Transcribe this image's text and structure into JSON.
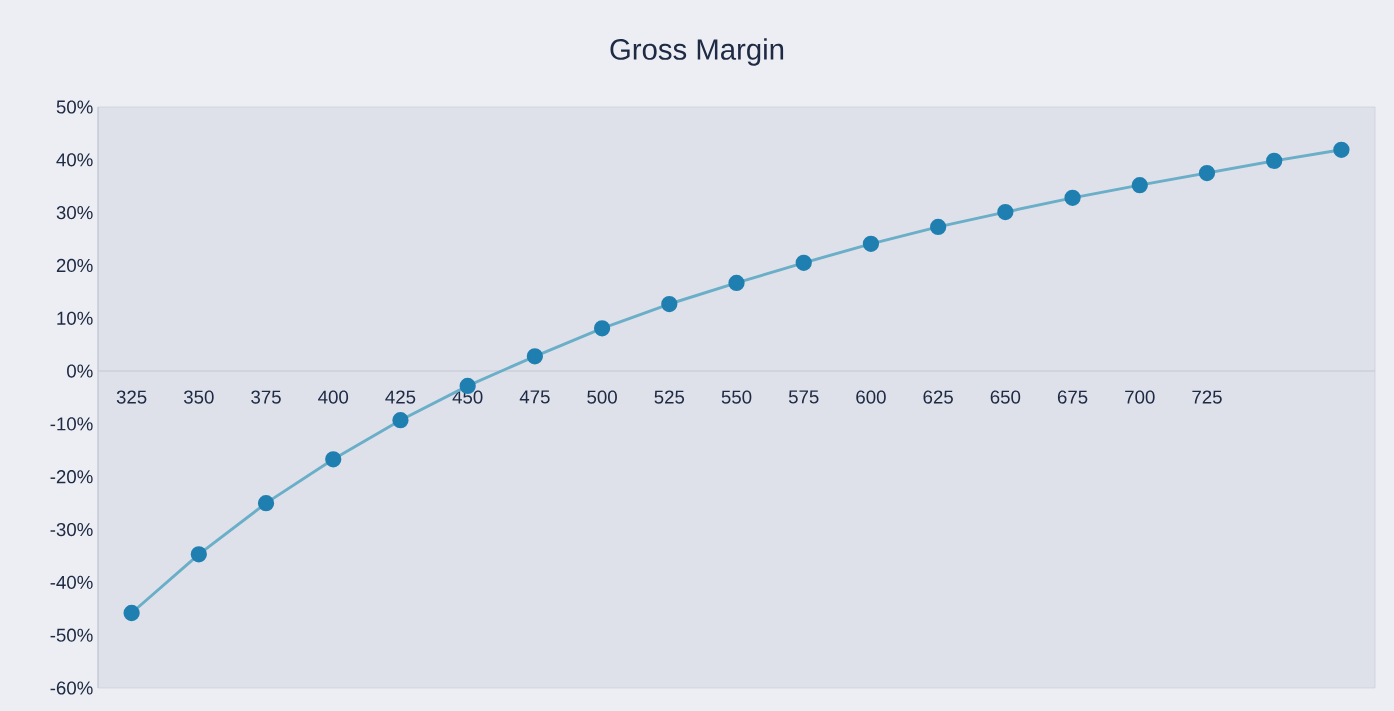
{
  "chart_data": {
    "type": "line",
    "title": "Gross Margin",
    "categories": [
      "325",
      "350",
      "375",
      "400",
      "425",
      "450",
      "475",
      "500",
      "525",
      "550",
      "575",
      "600",
      "625",
      "650",
      "675",
      "700",
      "725",
      null,
      null
    ],
    "series": [
      {
        "color": "#6aaec8",
        "values": [
          -45.8,
          -34.7,
          -25.0,
          -16.7,
          -9.3,
          -2.8,
          2.8,
          8.1,
          12.7,
          16.7,
          20.5,
          24.1,
          27.3,
          30.1,
          32.8,
          35.2,
          37.5,
          39.8,
          41.9
        ]
      }
    ],
    "marker": "circle",
    "line_style": "solid",
    "grid": false,
    "legend": false,
    "ylim": [
      -60,
      50
    ],
    "yticks": [
      {
        "value": -60,
        "label": "-60%"
      },
      {
        "value": -50,
        "label": "-50%"
      },
      {
        "value": -40,
        "label": "-40%"
      },
      {
        "value": -30,
        "label": "-30%"
      },
      {
        "value": -20,
        "label": "-20%"
      },
      {
        "value": -10,
        "label": "-10%"
      },
      {
        "value": 0,
        "label": "0%"
      },
      {
        "value": 10,
        "label": "10%"
      },
      {
        "value": 20,
        "label": "20%"
      },
      {
        "value": 30,
        "label": "30%"
      },
      {
        "value": 40,
        "label": "40%"
      },
      {
        "value": 50,
        "label": "50%"
      }
    ]
  }
}
